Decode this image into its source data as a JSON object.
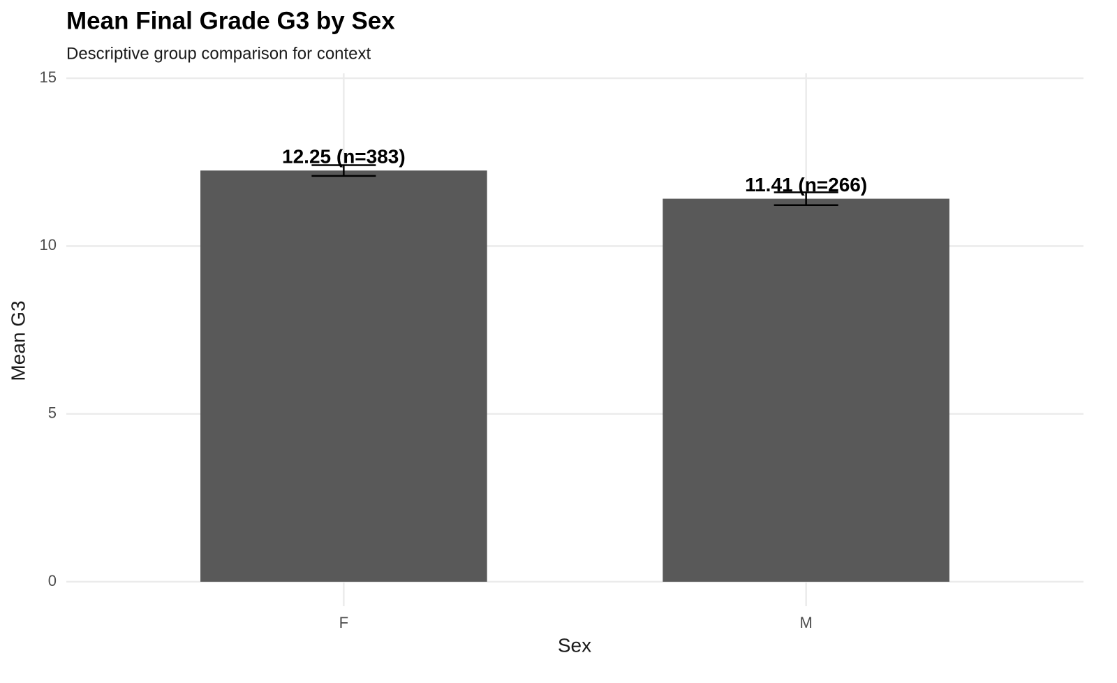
{
  "chart_data": {
    "type": "bar",
    "title": "Mean Final Grade G3 by Sex",
    "subtitle": "Descriptive group comparison for context",
    "x_label": "Sex",
    "y_label": "Mean G3",
    "categories": [
      "F",
      "M"
    ],
    "values": [
      12.25,
      11.41
    ],
    "value_labels": [
      "12.25 (n=383)",
      "11.41 (n=266)"
    ],
    "errors": [
      0.16,
      0.19
    ],
    "color": "#595959",
    "ylim": [
      0,
      15
    ],
    "yticks": [
      0,
      5,
      10,
      15
    ],
    "grid": true
  }
}
